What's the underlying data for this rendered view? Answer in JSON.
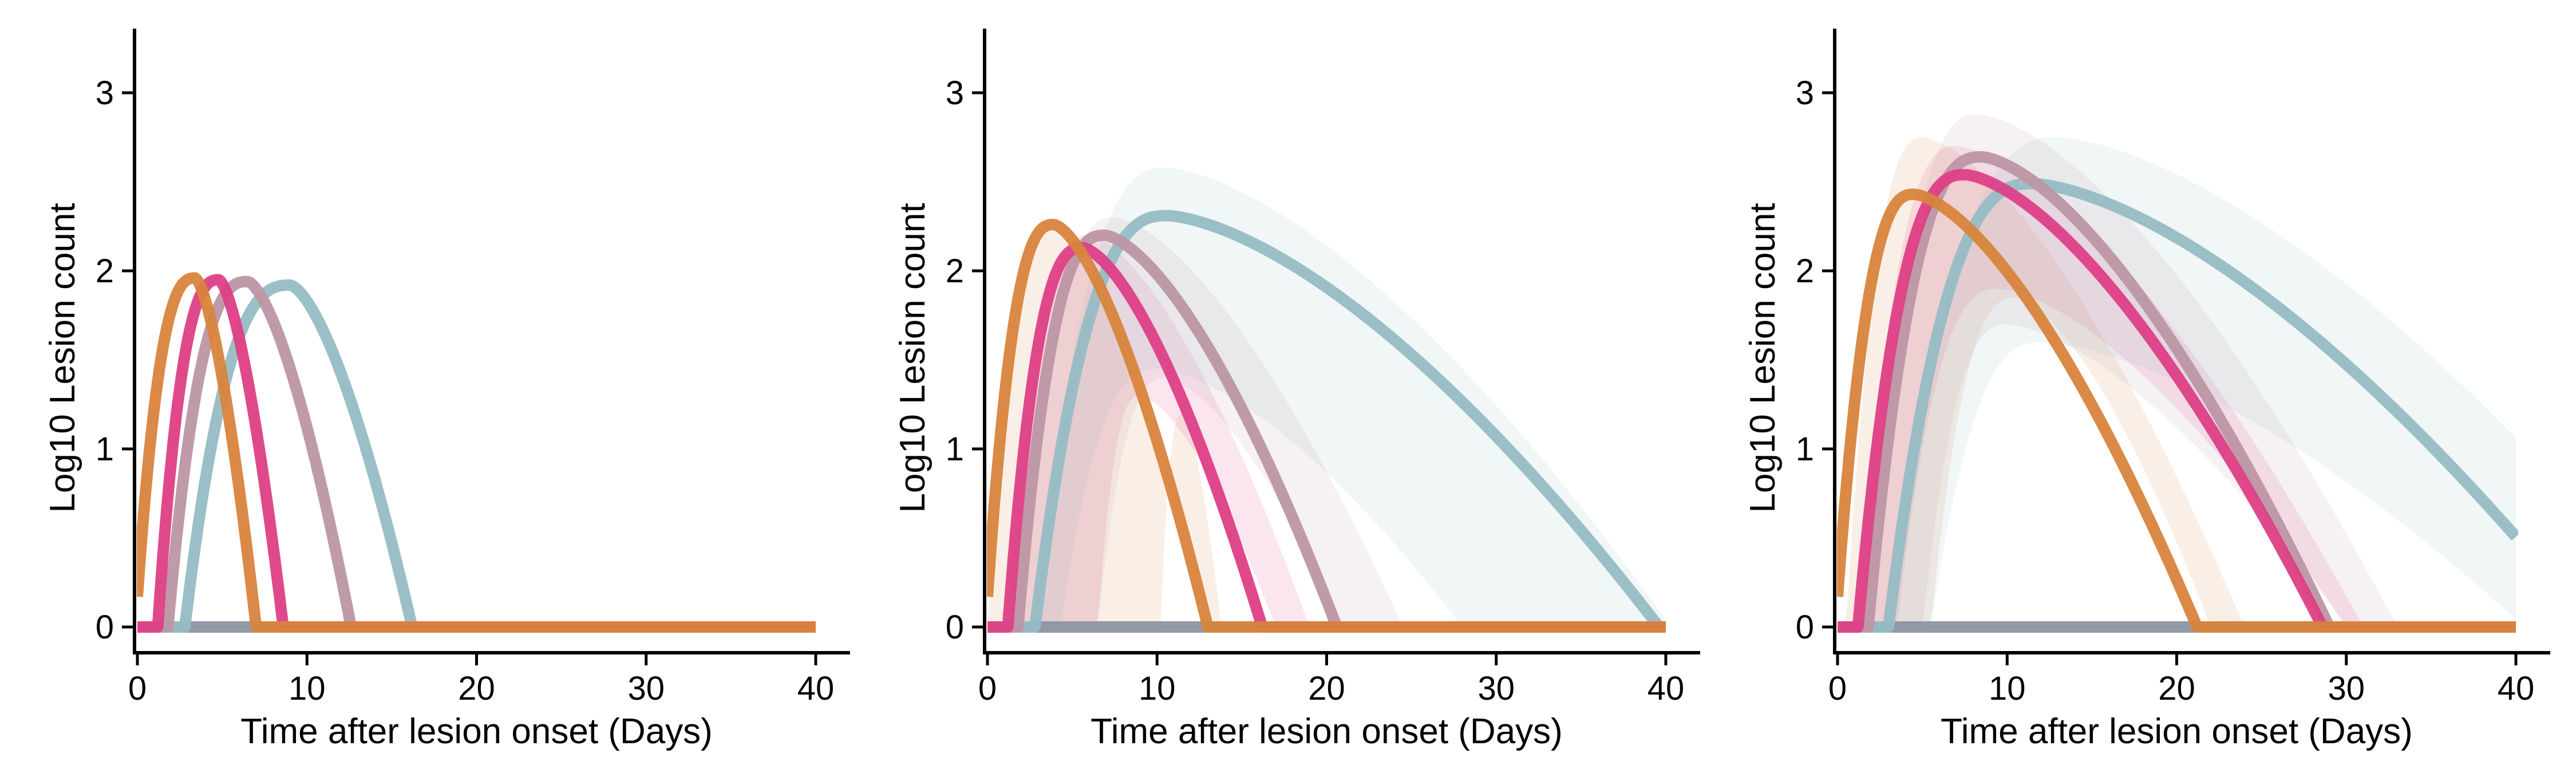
{
  "chart_data": [
    {
      "type": "line",
      "xlabel": "Time after lesion onset (Days)",
      "ylabel": "Log10 Lesion count",
      "xlim": [
        0,
        40
      ],
      "ylim": [
        -0.15,
        3.35
      ],
      "xticks": [
        0,
        10,
        20,
        30,
        40
      ],
      "yticks": [
        0,
        1,
        2,
        3
      ],
      "grid": false,
      "legend": "none",
      "series": [
        {
          "color": "#D8843C",
          "start": 0,
          "onset": 0,
          "peak_t": 3.4,
          "peak_v": 1.96,
          "end": 7.0,
          "start_v": 0.17,
          "band": null
        },
        {
          "color": "#DD3F86",
          "start": 0,
          "onset": 1.2,
          "peak_t": 4.8,
          "peak_v": 1.95,
          "end": 8.6,
          "band": null
        },
        {
          "color": "#BC96A4",
          "start": 0,
          "onset": 1.8,
          "peak_t": 6.5,
          "peak_v": 1.94,
          "end": 12.6,
          "band": null
        },
        {
          "color": "#96BCC4",
          "start": 0,
          "onset": 2.8,
          "peak_t": 9.0,
          "peak_v": 1.92,
          "end": 16.2,
          "band": null
        },
        {
          "color": "#8C93A2",
          "start": 0,
          "onset": 40,
          "peak_t": 40,
          "peak_v": 0,
          "end": 40,
          "band": null
        }
      ]
    },
    {
      "type": "line",
      "xlabel": "Time after lesion onset (Days)",
      "ylabel": "Log10 Lesion count",
      "xlim": [
        0,
        40
      ],
      "ylim": [
        -0.15,
        3.35
      ],
      "xticks": [
        0,
        10,
        20,
        30,
        40
      ],
      "yticks": [
        0,
        1,
        2,
        3
      ],
      "grid": false,
      "legend": "none",
      "series": [
        {
          "color": "#D8843C",
          "start": 0,
          "onset": 0,
          "peak_t": 3.9,
          "peak_v": 2.26,
          "end": 13.0,
          "start_v": 0.17,
          "band": {
            "lower": {
              "onset": 10.2,
              "peak_t": 11.5,
              "peak_v": 1.2,
              "end": 13.8
            },
            "upper": {
              "onset": 0,
              "peak_t": 3.9,
              "peak_v": 2.26,
              "end": 13.4
            }
          }
        },
        {
          "color": "#DD3F86",
          "start": 0,
          "onset": 1.2,
          "peak_t": 5.6,
          "peak_v": 2.13,
          "end": 16.2,
          "band": {
            "lower": {
              "onset": 6.5,
              "peak_t": 9.0,
              "peak_v": 1.3,
              "end": 17.0
            },
            "upper": {
              "onset": 1.2,
              "peak_t": 6.0,
              "peak_v": 2.2,
              "end": 19.0
            }
          }
        },
        {
          "color": "#BC96A4",
          "start": 0,
          "onset": 1.8,
          "peak_t": 6.9,
          "peak_v": 2.2,
          "end": 20.6,
          "band": {
            "lower": {
              "onset": 6.5,
              "peak_t": 10.5,
              "peak_v": 1.4,
              "end": 21.0
            },
            "upper": {
              "onset": 1.8,
              "peak_t": 7.5,
              "peak_v": 2.3,
              "end": 24.5
            }
          }
        },
        {
          "color": "#96BCC4",
          "start": 0,
          "onset": 2.8,
          "peak_t": 10.6,
          "peak_v": 2.31,
          "end": 39.6,
          "band": {
            "lower": {
              "onset": 4.3,
              "peak_t": 10.0,
              "peak_v": 1.45,
              "end": 28.0
            },
            "upper": {
              "onset": 2.8,
              "peak_t": 10.5,
              "peak_v": 2.58,
              "end": 40.3
            }
          }
        },
        {
          "color": "#8C93A2",
          "start": 0,
          "onset": 40,
          "peak_t": 40,
          "peak_v": 0,
          "end": 40,
          "band": null
        }
      ]
    },
    {
      "type": "line",
      "xlabel": "Time after lesion onset (Days)",
      "ylabel": "Log10 Lesion count",
      "xlim": [
        0,
        40
      ],
      "ylim": [
        -0.15,
        3.35
      ],
      "xticks": [
        0,
        10,
        20,
        30,
        40
      ],
      "yticks": [
        0,
        1,
        2,
        3
      ],
      "grid": false,
      "legend": "none",
      "series": [
        {
          "color": "#D8843C",
          "start": 0,
          "onset": 0,
          "peak_t": 4.5,
          "peak_v": 2.43,
          "end": 21.2,
          "start_v": 0.17,
          "band": {
            "lower": {
              "onset": 5.5,
              "peak_t": 10.5,
              "peak_v": 1.85,
              "end": 22.0
            },
            "upper": {
              "onset": 0.5,
              "peak_t": 5.0,
              "peak_v": 2.75,
              "end": 24.0
            }
          }
        },
        {
          "color": "#DD3F86",
          "start": 0,
          "onset": 1.2,
          "peak_t": 7.5,
          "peak_v": 2.54,
          "end": 28.6,
          "band": {
            "lower": {
              "onset": 3.5,
              "peak_t": 9.5,
              "peak_v": 1.9,
              "end": 30.0
            },
            "upper": {
              "onset": 1.2,
              "peak_t": 7.0,
              "peak_v": 2.7,
              "end": 31.0
            }
          }
        },
        {
          "color": "#BC96A4",
          "start": 0,
          "onset": 1.8,
          "peak_t": 8.5,
          "peak_v": 2.64,
          "end": 29.0,
          "band": {
            "lower": {
              "onset": 5.0,
              "peak_t": 10.0,
              "peak_v": 1.7,
              "end": 30.0
            },
            "upper": {
              "onset": 1.8,
              "peak_t": 8.3,
              "peak_v": 2.88,
              "end": 33.0
            }
          }
        },
        {
          "color": "#96BCC4",
          "start": 0,
          "onset": 3.0,
          "peak_t": 11.5,
          "peak_v": 2.49,
          "end": 44.5,
          "band": {
            "lower": {
              "onset": 5.5,
              "peak_t": 12.0,
              "peak_v": 1.6,
              "end": 40.5
            },
            "upper": {
              "onset": 3.0,
              "peak_t": 13.0,
              "peak_v": 2.75,
              "end": 50.0
            }
          }
        },
        {
          "color": "#8C93A2",
          "start": 0,
          "onset": 40,
          "peak_t": 40,
          "peak_v": 0,
          "end": 40,
          "band": null
        }
      ]
    }
  ]
}
